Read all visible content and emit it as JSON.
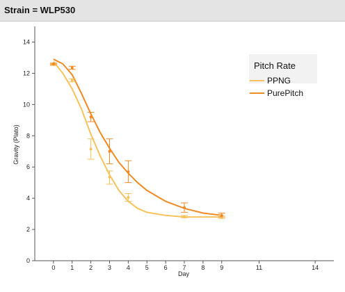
{
  "header": {
    "title": "Strain = WLP530"
  },
  "chart_data": {
    "type": "line",
    "title": "",
    "xlabel": "Day",
    "ylabel": "Gravity (Plato)",
    "xlim": [
      -1,
      15
    ],
    "ylim": [
      0,
      15
    ],
    "x_ticks": [
      0,
      1,
      2,
      3,
      4,
      5,
      6,
      7,
      8,
      9,
      11,
      14
    ],
    "x_tick_labels": [
      "0",
      "1",
      "2",
      "3",
      "4",
      "5",
      "6",
      "7",
      "8",
      "9",
      "11",
      "14"
    ],
    "y_ticks": [
      0,
      2,
      4,
      6,
      8,
      10,
      12,
      14
    ],
    "y_tick_labels": [
      "0",
      "2",
      "4",
      "6",
      "8",
      "10",
      "12",
      "14"
    ],
    "grid": false,
    "legend": {
      "title": "Pitch Rate",
      "placement": "top-right"
    },
    "series": [
      {
        "name": "PPNG",
        "color": "#f7c25b",
        "points": [
          {
            "x": 0,
            "y": 12.55,
            "err_low": 12.5,
            "err_high": 12.6
          },
          {
            "x": 1,
            "y": 11.55,
            "err_low": 11.45,
            "err_high": 11.65
          },
          {
            "x": 2,
            "y": 7.15,
            "err_low": 6.5,
            "err_high": 7.8
          },
          {
            "x": 3,
            "y": 5.35,
            "err_low": 4.9,
            "err_high": 5.75
          },
          {
            "x": 4,
            "y": 4.05,
            "err_low": 3.8,
            "err_high": 4.3
          },
          {
            "x": 7,
            "y": 2.8,
            "err_low": 2.75,
            "err_high": 2.9
          },
          {
            "x": 9,
            "y": 2.8,
            "err_low": 2.7,
            "err_high": 2.9
          }
        ],
        "curve": [
          [
            0,
            12.75
          ],
          [
            0.5,
            12.0
          ],
          [
            1,
            11.0
          ],
          [
            1.5,
            9.7
          ],
          [
            2,
            8.1
          ],
          [
            2.5,
            6.7
          ],
          [
            3,
            5.5
          ],
          [
            3.5,
            4.5
          ],
          [
            4,
            3.8
          ],
          [
            4.5,
            3.35
          ],
          [
            5,
            3.1
          ],
          [
            6,
            2.9
          ],
          [
            7,
            2.8
          ],
          [
            8,
            2.8
          ],
          [
            9,
            2.8
          ]
        ]
      },
      {
        "name": "PurePitch",
        "color": "#f08a24",
        "points": [
          {
            "x": 0,
            "y": 12.6,
            "err_low": 12.55,
            "err_high": 12.65
          },
          {
            "x": 1,
            "y": 12.35,
            "err_low": 12.25,
            "err_high": 12.45
          },
          {
            "x": 2,
            "y": 9.2,
            "err_low": 8.9,
            "err_high": 9.5
          },
          {
            "x": 3,
            "y": 7.0,
            "err_low": 6.2,
            "err_high": 7.8
          },
          {
            "x": 4,
            "y": 5.7,
            "err_low": 5.0,
            "err_high": 6.4
          },
          {
            "x": 7,
            "y": 3.4,
            "err_low": 3.1,
            "err_high": 3.7
          },
          {
            "x": 9,
            "y": 2.9,
            "err_low": 2.8,
            "err_high": 3.05
          }
        ],
        "curve": [
          [
            0,
            12.9
          ],
          [
            0.5,
            12.6
          ],
          [
            1,
            11.9
          ],
          [
            1.5,
            10.7
          ],
          [
            2,
            9.4
          ],
          [
            2.5,
            8.2
          ],
          [
            3,
            7.2
          ],
          [
            3.5,
            6.3
          ],
          [
            4,
            5.6
          ],
          [
            4.5,
            5.0
          ],
          [
            5,
            4.5
          ],
          [
            6,
            3.8
          ],
          [
            7,
            3.35
          ],
          [
            8,
            3.05
          ],
          [
            9,
            2.9
          ]
        ]
      }
    ]
  }
}
